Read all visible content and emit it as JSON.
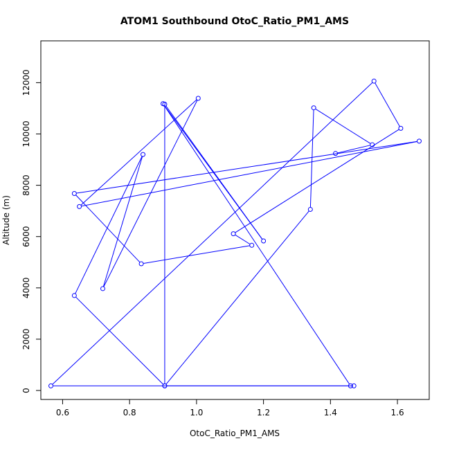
{
  "chart_data": {
    "type": "line",
    "title": "ATOM1 Southbound OtoC_Ratio_PM1_AMS",
    "xlabel": "OtoC_Ratio_PM1_AMS",
    "ylabel": "Altitude (m)",
    "xlim": [
      0.535,
      1.695
    ],
    "ylim": [
      -350,
      13630
    ],
    "xticks": [
      0.6,
      0.8,
      1.0,
      1.2,
      1.4,
      1.6
    ],
    "xtick_labels": [
      "0.6",
      "0.8",
      "1.0",
      "1.2",
      "1.4",
      "1.6"
    ],
    "yticks": [
      0,
      2000,
      4000,
      6000,
      8000,
      10000,
      12000
    ],
    "ytick_labels": [
      "0",
      "2000",
      "4000",
      "6000",
      "8000",
      "10000",
      "12000"
    ],
    "grid": false,
    "legend": "none",
    "line_style": "line with open circle markers",
    "series": [
      {
        "color": "#0000ff",
        "points": [
          {
            "x": 1.47,
            "y": 180
          },
          {
            "x": 0.905,
            "y": 180
          },
          {
            "x": 0.635,
            "y": 3700
          },
          {
            "x": 0.84,
            "y": 9200
          },
          {
            "x": 0.72,
            "y": 3970
          },
          {
            "x": 1.005,
            "y": 11390
          },
          {
            "x": 0.65,
            "y": 7170
          },
          {
            "x": 1.665,
            "y": 9720
          },
          {
            "x": 0.635,
            "y": 7680
          },
          {
            "x": 0.835,
            "y": 4940
          },
          {
            "x": 1.165,
            "y": 5660
          },
          {
            "x": 1.11,
            "y": 6110
          },
          {
            "x": 1.61,
            "y": 10220
          },
          {
            "x": 1.53,
            "y": 12060
          },
          {
            "x": 0.565,
            "y": 180
          },
          {
            "x": 1.46,
            "y": 180
          },
          {
            "x": 0.9,
            "y": 11180
          },
          {
            "x": 1.2,
            "y": 5830
          },
          {
            "x": 0.905,
            "y": 11160
          },
          {
            "x": 0.905,
            "y": 180
          },
          {
            "x": 1.34,
            "y": 7060
          },
          {
            "x": 1.35,
            "y": 11020
          },
          {
            "x": 1.525,
            "y": 9580
          },
          {
            "x": 1.415,
            "y": 9240
          }
        ]
      }
    ]
  }
}
